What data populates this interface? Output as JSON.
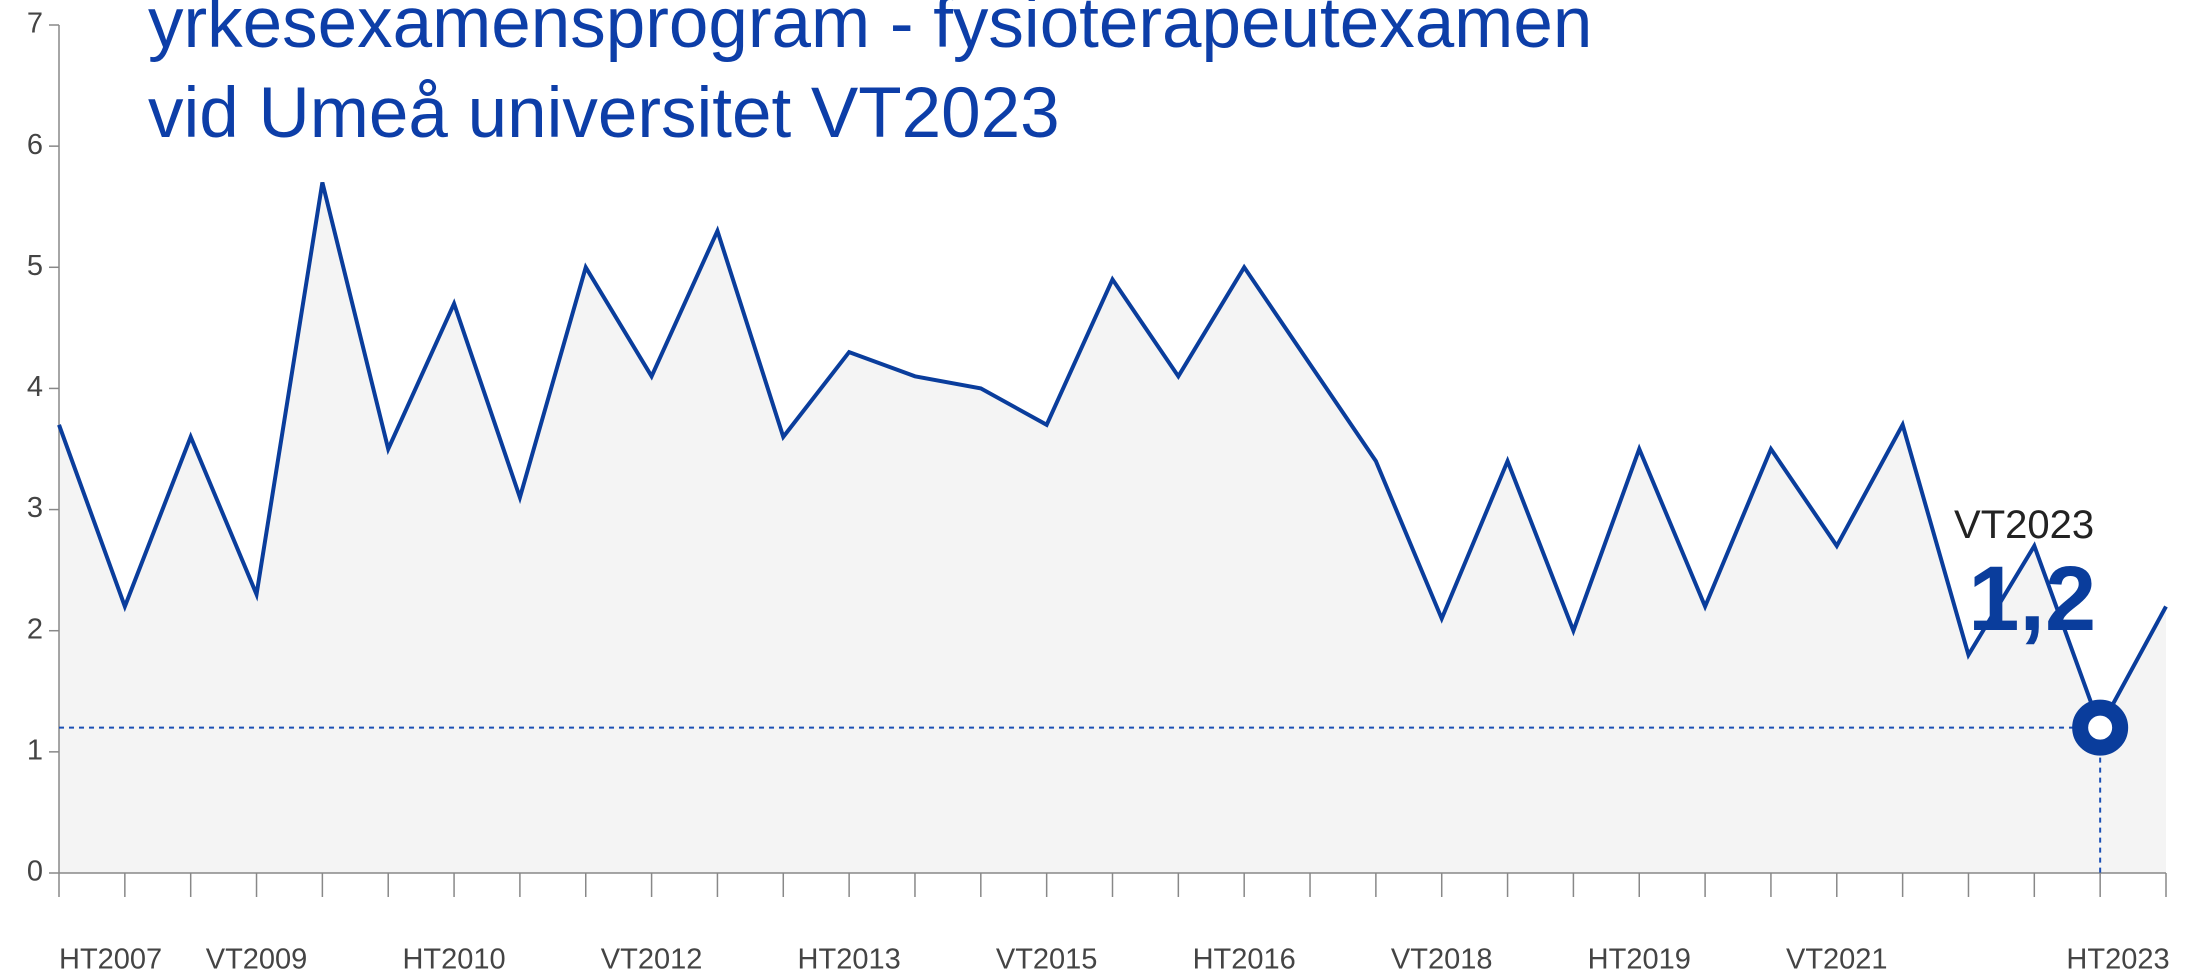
{
  "chart_data": {
    "type": "line",
    "title": [
      "yrkesexamensprogram - fysioterapeutexamen",
      "vid Umeå universitet VT2023"
    ],
    "categories": [
      "HT2007",
      null,
      null,
      "VT2009",
      null,
      null,
      "HT2010",
      null,
      null,
      "VT2012",
      null,
      null,
      "HT2013",
      null,
      null,
      "VT2015",
      null,
      null,
      "HT2016",
      null,
      null,
      "VT2018",
      null,
      null,
      "HT2019",
      null,
      null,
      "VT2021",
      null,
      null,
      null,
      null,
      "HT2023"
    ],
    "series": [
      {
        "name": null,
        "color": "#0a3d9c",
        "values": [
          3.7,
          2.2,
          3.6,
          2.3,
          5.7,
          3.5,
          4.7,
          3.1,
          5.0,
          4.1,
          5.3,
          3.6,
          4.3,
          4.1,
          4.0,
          3.7,
          4.9,
          4.1,
          5.0,
          4.2,
          3.4,
          2.1,
          3.4,
          2.0,
          3.5,
          2.2,
          3.5,
          2.7,
          3.7,
          1.8,
          2.7,
          1.2,
          2.2
        ]
      }
    ],
    "annotation": {
      "label": "VT2023",
      "value": 1.2,
      "value_label": "1,2"
    },
    "ylim": [
      0,
      7
    ],
    "yticks": [
      0,
      1,
      2,
      3,
      4,
      5,
      6,
      7
    ],
    "area_color": "#f4f4f4"
  }
}
